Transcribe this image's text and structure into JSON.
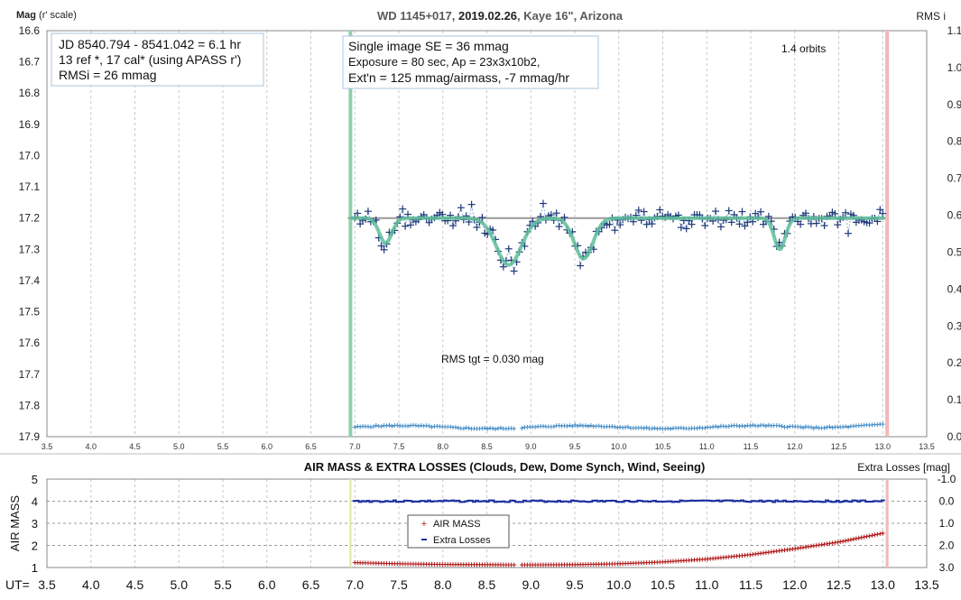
{
  "chart_data": [
    {
      "type": "scatter",
      "title_parts": [
        "WD 1145+017, ",
        "2019.02.26",
        ", Kaye 16\", Arizona"
      ],
      "ylabel_left_bold": "Mag",
      "ylabel_left_rest": " (r' scale)",
      "ylabel_right": "RMS i",
      "xlim": [
        3.5,
        13.5
      ],
      "ylim_left": [
        16.6,
        17.9
      ],
      "ylim_right": [
        0.0,
        1.1
      ],
      "x_ticks": [
        "3.5",
        "4.0",
        "4.5",
        "5.0",
        "5.5",
        "6.0",
        "6.5",
        "7.0",
        "7.5",
        "8.0",
        "8.5",
        "9.0",
        "9.5",
        "10.0",
        "10.5",
        "11.0",
        "11.5",
        "12.0",
        "12.5",
        "13.0",
        "13.5"
      ],
      "y_left_ticks": [
        "16.6",
        "16.7",
        "16.8",
        "16.9",
        "17.0",
        "17.1",
        "17.2",
        "17.3",
        "17.4",
        "17.5",
        "17.6",
        "17.7",
        "17.8",
        "17.9"
      ],
      "y_right_ticks": [
        "1.1",
        "1.0",
        "0.9",
        "0.8",
        "0.7",
        "0.6",
        "0.5",
        "0.4",
        "0.3",
        "0.2",
        "0.1",
        "0.0"
      ],
      "grid": true,
      "start_line_x": 6.95,
      "end_line_x": 13.05,
      "baseline_mag": 17.2,
      "textbox1": [
        "JD 8540.794 - 8541.042 = 6.1 hr",
        " 13 ref *, 17 cal* (using APASS r')",
        "RMSi = 26 mmag"
      ],
      "textbox2": [
        "Single image SE = 36 mmag",
        "Exposure = 80 sec, Ap = 23x3x10b2,",
        "Ext'n = 125 mmag/airmass, -7 mmag/hr"
      ],
      "annotation_orbits": "1.4 orbits",
      "annotation_rms": "RMS tgt = 0.030 mag",
      "model_dips": [
        {
          "center": 7.35,
          "depth": 0.08,
          "width": 0.1
        },
        {
          "center": 8.75,
          "depth": 0.15,
          "width": 0.2
        },
        {
          "center": 9.6,
          "depth": 0.13,
          "width": 0.15
        },
        {
          "center": 11.83,
          "depth": 0.1,
          "width": 0.09
        }
      ],
      "series": [
        {
          "name": "WD 1145+017",
          "color": "#1f3a7a",
          "x_start": 7.0,
          "x_end": 13.0,
          "n_points": 200,
          "noise_mag": 0.036,
          "seed": 11
        },
        {
          "name": "RMS tgt",
          "color": "#4a90c8",
          "x_start": 7.0,
          "x_end": 13.0,
          "n_points": 200,
          "y_mean_rms": 0.03,
          "seed": 5,
          "gap_at_x": 8.85
        }
      ]
    },
    {
      "type": "line",
      "title": "AIR MASS & EXTRA LOSSES (Clouds, Dew, Dome Synch, Wind, Seeing)",
      "ylabel_left": "AIR MASS",
      "ylabel_right": "Extra Losses [mag]",
      "xlabel_prefix": "UT=",
      "xlim": [
        3.5,
        13.5
      ],
      "ylim_left": [
        1,
        5
      ],
      "ylim_right": [
        3.0,
        -1.0
      ],
      "x_ticks": [
        "3.5",
        "4.0",
        "4.5",
        "5.0",
        "5.5",
        "6.0",
        "6.5",
        "7.0",
        "7.5",
        "8.0",
        "8.5",
        "9.0",
        "9.5",
        "10.0",
        "10.5",
        "11.0",
        "11.5",
        "12.0",
        "12.5",
        "13.0",
        "13.5"
      ],
      "y_left_ticks": [
        "5",
        "4",
        "3",
        "2",
        "1"
      ],
      "y_right_ticks": [
        "-1.0",
        "0.0",
        "1.0",
        "2.0",
        "3.0"
      ],
      "legend": [
        "AIR MASS",
        "Extra Losses"
      ],
      "start_line_x": 6.95,
      "end_line_x": 13.05,
      "series": [
        {
          "name": "AIR MASS",
          "color": "#b01818",
          "x": [
            7.0,
            7.5,
            8.0,
            8.5,
            8.8,
            9.0,
            9.5,
            10.0,
            10.5,
            11.0,
            11.5,
            12.0,
            12.5,
            13.0
          ],
          "values": [
            1.22,
            1.17,
            1.14,
            1.13,
            1.12,
            1.12,
            1.13,
            1.17,
            1.25,
            1.38,
            1.58,
            1.85,
            2.15,
            2.55
          ]
        },
        {
          "name": "Extra Losses",
          "color": "#1a2fa0",
          "x": [
            7.0,
            13.0
          ],
          "values": [
            0.0,
            0.0
          ]
        }
      ]
    }
  ]
}
